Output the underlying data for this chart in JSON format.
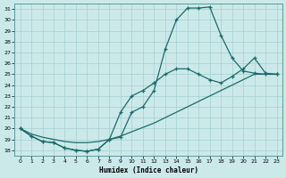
{
  "xlabel": "Humidex (Indice chaleur)",
  "background_color": "#cce9ea",
  "grid_color": "#aad3d5",
  "line_color": "#1a6b6b",
  "xlim": [
    -0.5,
    23.5
  ],
  "ylim": [
    17.5,
    31.5
  ],
  "xticks": [
    0,
    1,
    2,
    3,
    4,
    5,
    6,
    7,
    8,
    9,
    10,
    11,
    12,
    13,
    14,
    15,
    16,
    17,
    18,
    19,
    20,
    21,
    22,
    23
  ],
  "yticks": [
    18,
    19,
    20,
    21,
    22,
    23,
    24,
    25,
    26,
    27,
    28,
    29,
    30,
    31
  ],
  "curve1_x": [
    0,
    1,
    2,
    3,
    4,
    5,
    6,
    7,
    8,
    9,
    10,
    11,
    12,
    13,
    14,
    15,
    16,
    17,
    18,
    19,
    20,
    21,
    22,
    23
  ],
  "curve1_y": [
    20.0,
    19.3,
    18.8,
    18.7,
    18.2,
    18.0,
    17.9,
    18.1,
    19.0,
    19.2,
    21.5,
    22.0,
    23.5,
    27.3,
    30.0,
    31.1,
    31.1,
    31.2,
    28.6,
    26.5,
    25.3,
    25.1,
    25.0,
    25.0
  ],
  "curve2_x": [
    0,
    1,
    2,
    3,
    4,
    5,
    6,
    7,
    8,
    9,
    10,
    11,
    12,
    13,
    14,
    15,
    16,
    17,
    18,
    19,
    20,
    21,
    22,
    23
  ],
  "curve2_y": [
    20.0,
    19.3,
    18.8,
    18.7,
    18.2,
    18.0,
    17.9,
    18.1,
    19.0,
    21.5,
    23.0,
    23.5,
    24.2,
    25.0,
    25.5,
    25.5,
    25.0,
    24.5,
    24.2,
    24.8,
    25.5,
    26.5,
    25.1,
    25.0
  ],
  "curve3_x": [
    0,
    1,
    2,
    3,
    4,
    5,
    6,
    7,
    8,
    9,
    10,
    11,
    12,
    13,
    14,
    15,
    16,
    17,
    18,
    19,
    20,
    21,
    22,
    23
  ],
  "curve3_y": [
    20.0,
    19.5,
    19.2,
    19.0,
    18.8,
    18.7,
    18.7,
    18.8,
    19.0,
    19.3,
    19.7,
    20.1,
    20.5,
    21.0,
    21.5,
    22.0,
    22.5,
    23.0,
    23.5,
    24.0,
    24.5,
    25.0,
    25.0,
    25.0
  ]
}
